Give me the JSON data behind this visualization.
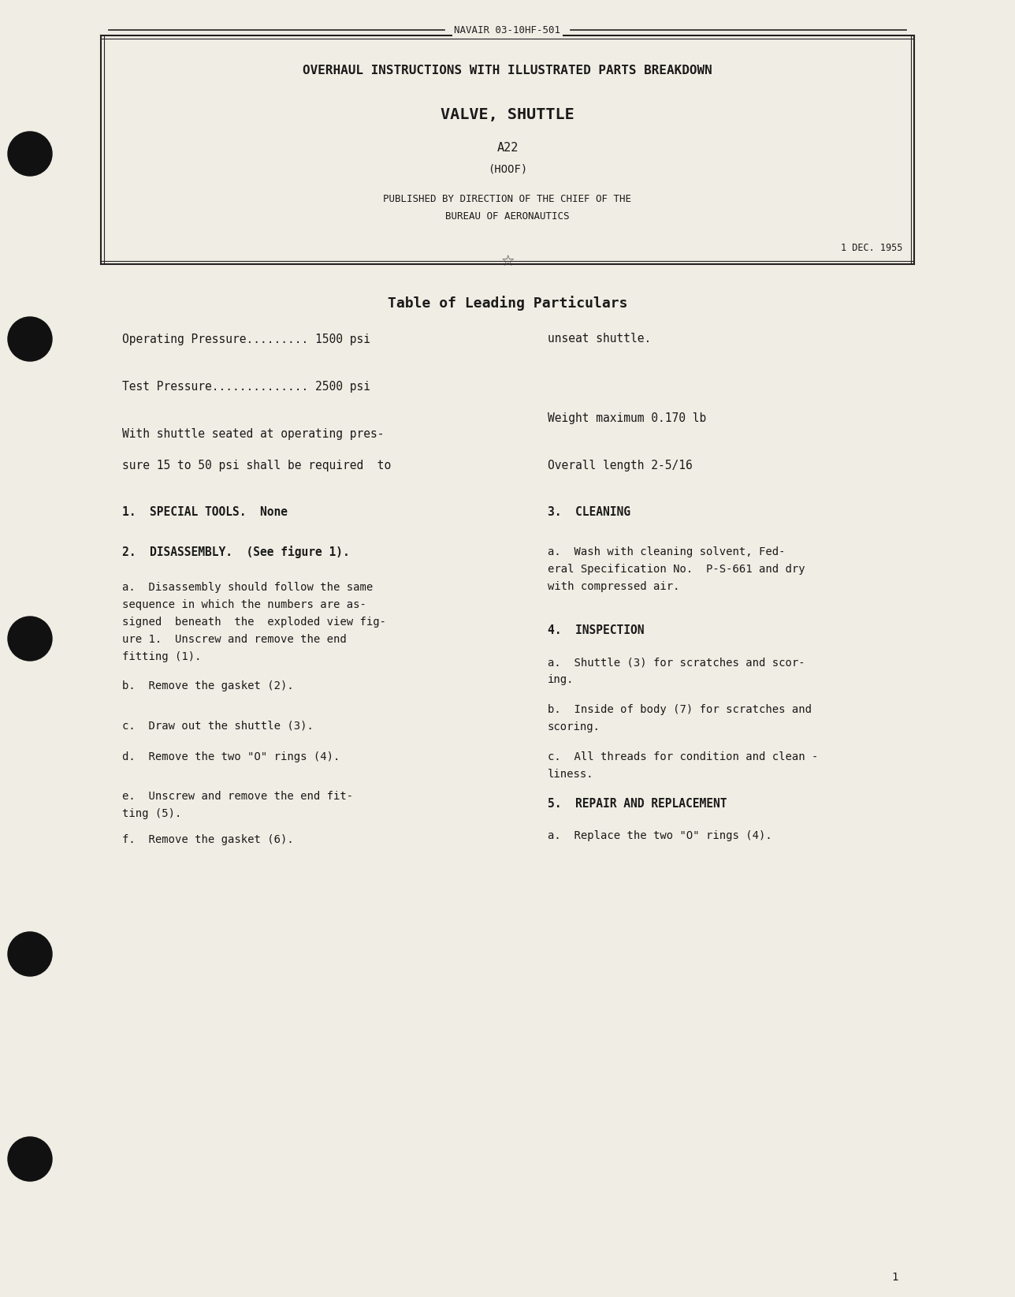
{
  "bg_color": "#f0ede4",
  "text_color": "#1a1a1a",
  "header_navair": "NAVAIR 03-10HF-501",
  "title_line1": "OVERHAUL INSTRUCTIONS WITH ILLUSTRATED PARTS BREAKDOWN",
  "title_line2": "VALVE, SHUTTLE",
  "title_line3": "A22",
  "title_line4": "(HOOF)",
  "title_line5": "PUBLISHED BY DIRECTION OF THE CHIEF OF THE",
  "title_line6": "BUREAU OF AERONAUTICS",
  "date": "1 DEC. 1955",
  "section_title": "Table of Leading Particulars",
  "left_col_lines": [
    "Operating Pressure......... 1500 psi",
    "Test Pressure.............. 2500 psi",
    "With shuttle seated at operating pres-",
    "sure 15 to 50 psi shall be required  to"
  ],
  "right_col_lines": [
    "unseat shuttle.",
    "",
    "Weight maximum 0.170 lb",
    "",
    "Overall length 2-5/16"
  ],
  "section1_head": "1.  SPECIAL TOOLS.  None",
  "section2_head": "2.  DISASSEMBLY.  (See figure 1).",
  "section2a": "a.  Disassembly should follow the same\nsequence in which the numbers are as-\nsigned  beneath  the  exploded view fig-\nure 1.  Unscrew and remove the end\nfitting (1).",
  "section2b": "b.  Remove the gasket (2).",
  "section2c": "c.  Draw out the shuttle (3).",
  "section2d": "d.  Remove the two \"O\" rings (4).",
  "section2e": "e.  Unscrew and remove the end fit-\nting (5).",
  "section2f": "f.  Remove the gasket (6).",
  "section3_head": "3.  CLEANING",
  "section3a": "a.  Wash with cleaning solvent, Fed-\neral Specification No.  P-S-661 and dry\nwith compressed air.",
  "section4_head": "4.  INSPECTION",
  "section4a": "a.  Shuttle (3) for scratches and scor-\ning.",
  "section4b": "b.  Inside of body (7) for scratches and\nscoring.",
  "section4c": "c.  All threads for condition and clean -\nliness.",
  "section5_head": "5.  REPAIR AND REPLACEMENT",
  "section5a": "a.  Replace the two \"O\" rings (4).",
  "page_number": "1"
}
